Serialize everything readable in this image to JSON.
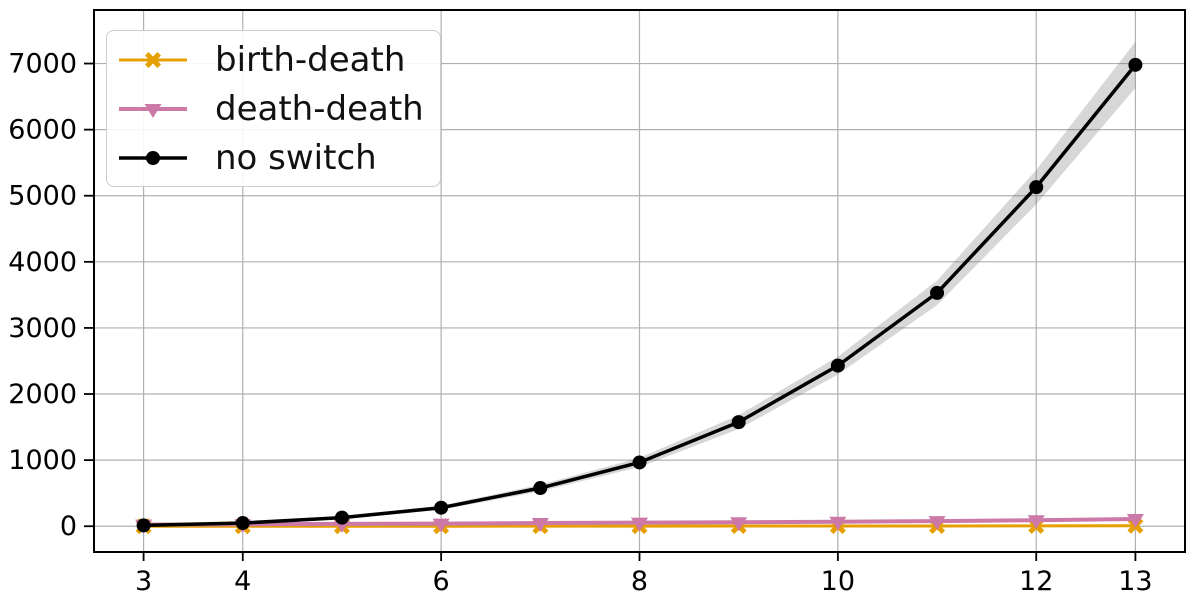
{
  "figure": {
    "background_color": "#ffffff",
    "grid_color": "#b0b0b0",
    "spine_color": "#000000",
    "band_color": "rgba(110,110,110,0.28)"
  },
  "chart_data": {
    "type": "line",
    "x": [
      3,
      4,
      5,
      6,
      7,
      8,
      9,
      10,
      11,
      12,
      13
    ],
    "xticks": [
      3,
      4,
      6,
      8,
      10,
      12,
      13
    ],
    "yticks": [
      0,
      1000,
      2000,
      3000,
      4000,
      5000,
      6000,
      7000
    ],
    "xlim": [
      2.5,
      13.5
    ],
    "ylim": [
      -390,
      7810
    ],
    "grid": true,
    "legend_position": "upper-left",
    "series": [
      {
        "name": "birth-death",
        "color": "#E69F00",
        "marker": "x-filled",
        "line_width": 3,
        "values": [
          0,
          0,
          0,
          0,
          2,
          2,
          3,
          3,
          4,
          5,
          8
        ]
      },
      {
        "name": "death-death",
        "color": "#CC79A7",
        "marker": "triangle-down",
        "line_width": 4,
        "values": [
          25,
          30,
          35,
          40,
          48,
          55,
          60,
          68,
          78,
          90,
          110
        ]
      },
      {
        "name": "no switch",
        "color": "#000000",
        "marker": "circle",
        "line_width": 3.5,
        "values": [
          12,
          48,
          130,
          280,
          578,
          965,
          1575,
          2430,
          3530,
          5130,
          6980
        ],
        "band": {
          "lower": [
            4,
            32,
            105,
            248,
            528,
            895,
            1470,
            2295,
            3345,
            4870,
            6630
          ],
          "upper": [
            22,
            66,
            155,
            312,
            628,
            1035,
            1680,
            2565,
            3715,
            5390,
            7330
          ]
        }
      }
    ]
  },
  "legend": {
    "labels": [
      "birth-death",
      "death-death",
      "no switch"
    ]
  },
  "axes": {
    "x_tick_labels": [
      "3",
      "4",
      "6",
      "8",
      "10",
      "12",
      "13"
    ],
    "y_tick_labels": [
      "0",
      "1000",
      "2000",
      "3000",
      "4000",
      "5000",
      "6000",
      "7000"
    ]
  }
}
